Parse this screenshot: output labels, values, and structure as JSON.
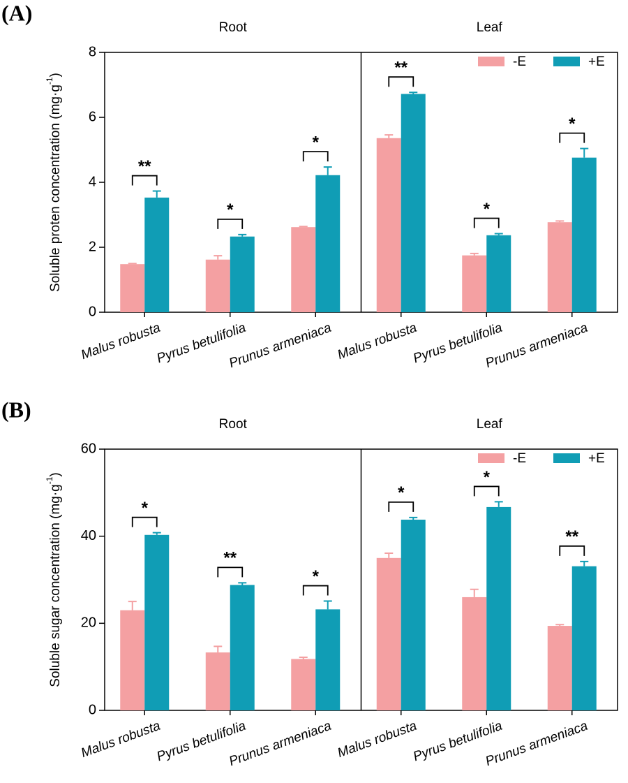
{
  "chart_data": [
    {
      "type": "bar",
      "panel_label": "(A)",
      "y_label": "Soluble proten concentration (mg·g",
      "y_label_sup": "-1",
      "y_label_end": ")",
      "groups": [
        "Root",
        "Leaf"
      ],
      "categories": [
        "Malus robusta",
        "Pyrus betulifolia",
        "Prunus armeniaca",
        "Malus robusta",
        "Pyrus betulifolia",
        "Prunus armeniaca"
      ],
      "series": [
        {
          "name": "-E",
          "color": "#f4a0a2",
          "values": [
            1.48,
            1.62,
            2.62,
            5.36,
            1.75,
            2.77
          ],
          "errors": [
            0.02,
            0.12,
            0.02,
            0.1,
            0.06,
            0.04
          ]
        },
        {
          "name": "+E",
          "color": "#109db5",
          "values": [
            3.53,
            2.33,
            4.22,
            6.72,
            2.37,
            4.76
          ],
          "errors": [
            0.2,
            0.06,
            0.25,
            0.05,
            0.05,
            0.28
          ]
        }
      ],
      "significance": [
        "**",
        "*",
        "*",
        "**",
        "*",
        "*"
      ],
      "ylim": [
        0,
        8
      ],
      "yticks": [
        0,
        2,
        4,
        6,
        8
      ],
      "legend": "upper right"
    },
    {
      "type": "bar",
      "panel_label": "(B)",
      "y_label": "Soluble sugar concentration (mg·g",
      "y_label_sup": "-1",
      "y_label_end": ")",
      "groups": [
        "Root",
        "Leaf"
      ],
      "categories": [
        "Malus robusta",
        "Pyrus betulifolia",
        "Prunus armeniaca",
        "Malus robusta",
        "Pyrus betulifolia",
        "Prunus armeniaca"
      ],
      "series": [
        {
          "name": "-E",
          "color": "#f4a0a2",
          "values": [
            23,
            13.3,
            11.8,
            35,
            26,
            19.4
          ],
          "errors": [
            2,
            1.4,
            0.4,
            1.1,
            1.8,
            0.3
          ]
        },
        {
          "name": "+E",
          "color": "#109db5",
          "values": [
            40.3,
            28.8,
            23.2,
            43.8,
            46.7,
            33.1
          ],
          "errors": [
            0.5,
            0.5,
            1.9,
            0.5,
            1.2,
            1.1
          ]
        }
      ],
      "significance": [
        "*",
        "**",
        "*",
        "*",
        "*",
        "**"
      ],
      "ylim": [
        0,
        60
      ],
      "yticks": [
        0,
        20,
        40,
        60
      ],
      "legend": "upper right"
    }
  ]
}
